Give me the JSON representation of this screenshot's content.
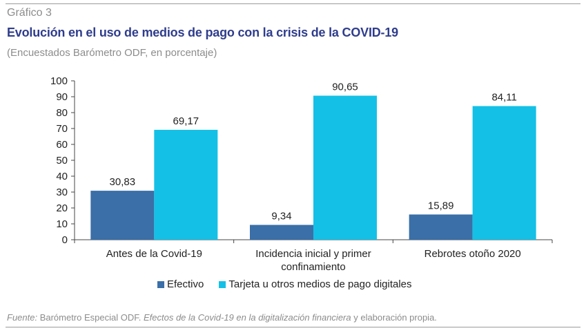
{
  "header": {
    "figure_label": "Gráfico 3",
    "title": "Evolución en el uso de medios de pago con la crisis de la COVID-19",
    "subtitle": "(Encuestados Barómetro ODF, en porcentaje)"
  },
  "source": {
    "prefix": "Fuente:",
    "part1": " Barómetro Especial ODF. ",
    "italic_part": "Efectos de la Covid-19 en la digitalización financiera",
    "part2": " y elaboración propia."
  },
  "colors": {
    "efectivo": "#3a6fa8",
    "tarjeta": "#14c0e6"
  },
  "chart_data": {
    "type": "bar",
    "categories": [
      [
        "Antes de la Covid-19"
      ],
      [
        "Incidencia inicial y primer",
        "confinamiento"
      ],
      [
        "Rebrotes otoño 2020"
      ]
    ],
    "series": [
      {
        "name": "Efectivo",
        "values": [
          30.83,
          9.34,
          15.89
        ],
        "labels": [
          "30,83",
          "9,34",
          "15,89"
        ]
      },
      {
        "name": "Tarjeta u otros medios de pago digitales",
        "values": [
          69.17,
          90.65,
          84.11
        ],
        "labels": [
          "69,17",
          "90,65",
          "84,11"
        ]
      }
    ],
    "ylim": [
      0,
      100
    ],
    "yticks": [
      0,
      10,
      20,
      30,
      40,
      50,
      60,
      70,
      80,
      90,
      100
    ],
    "grid": false,
    "legend_position": "bottom"
  }
}
